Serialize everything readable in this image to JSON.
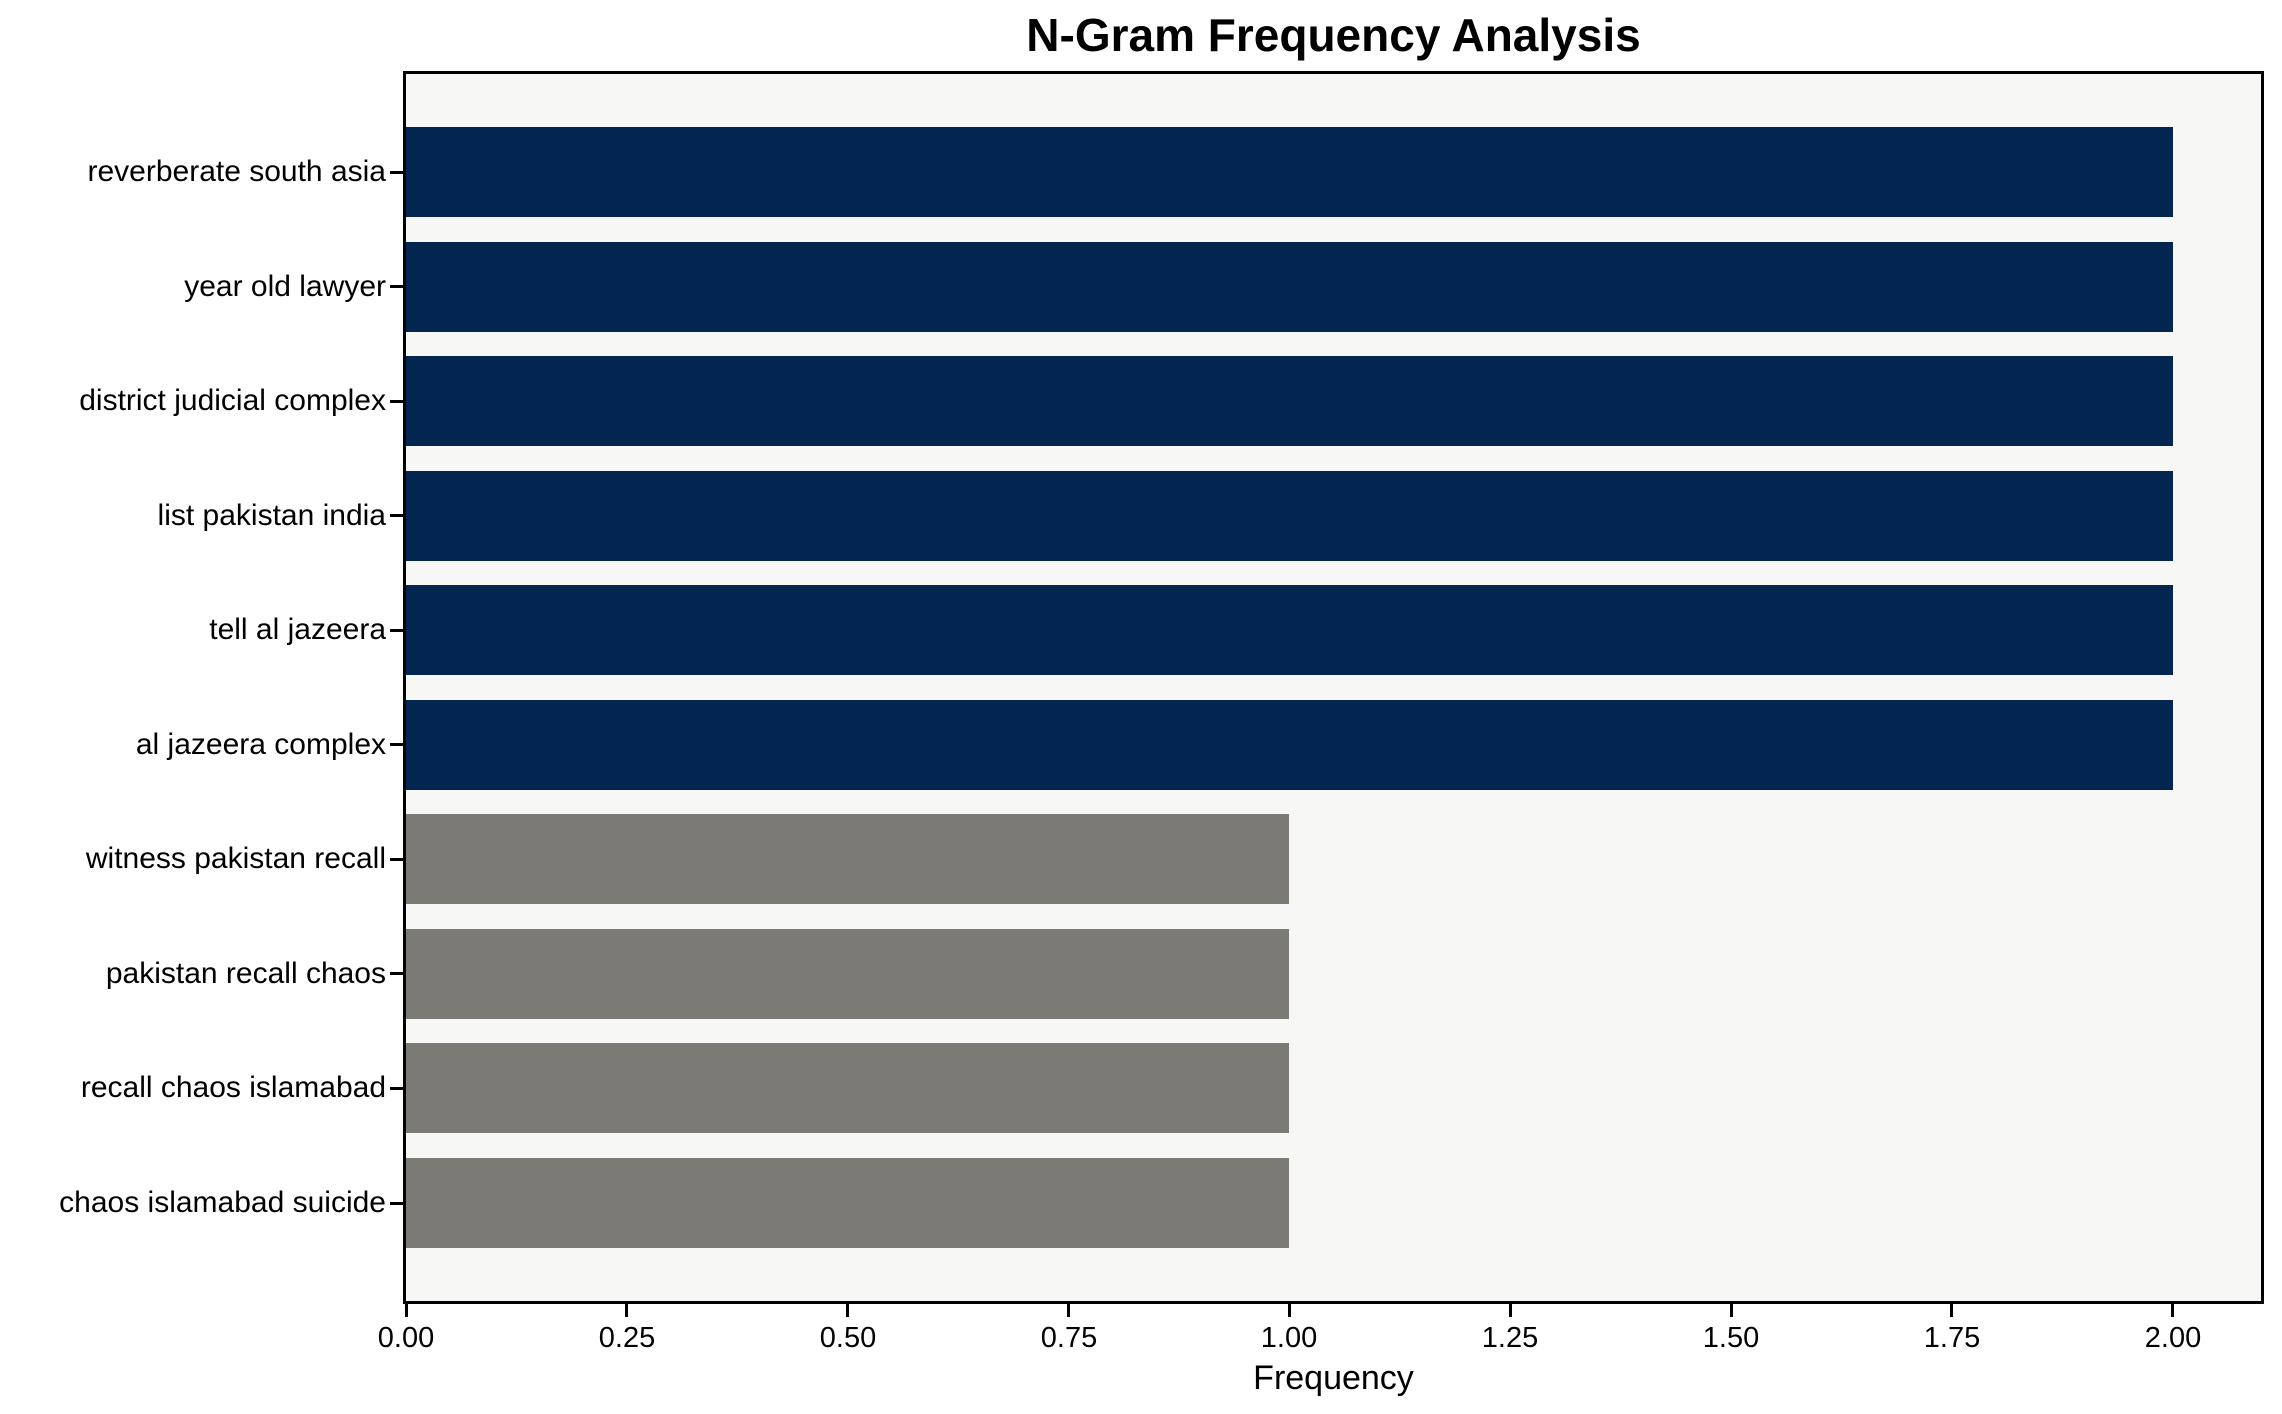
{
  "figure": {
    "title": "N-Gram Frequency Analysis",
    "xlabel": "Frequency"
  },
  "colors": {
    "bar_high_freq": "#02264f",
    "bar_low_freq": "#7b7a75",
    "plot_background": "#f7f7f5",
    "figure_background": "#ffffff",
    "spine": "#000000",
    "text": "#000000"
  },
  "chart_data": {
    "type": "bar",
    "orientation": "horizontal",
    "title": "N-Gram Frequency Analysis",
    "xlabel": "Frequency",
    "ylabel": "",
    "categories": [
      "reverberate south asia",
      "year old lawyer",
      "district judicial complex",
      "list pakistan india",
      "tell al jazeera",
      "al jazeera complex",
      "witness pakistan recall",
      "pakistan recall chaos",
      "recall chaos islamabad",
      "chaos islamabad suicide"
    ],
    "values": [
      2,
      2,
      2,
      2,
      2,
      2,
      1,
      1,
      1,
      1
    ],
    "bar_colors": [
      "#02264f",
      "#02264f",
      "#02264f",
      "#02264f",
      "#02264f",
      "#02264f",
      "#7b7a75",
      "#7b7a75",
      "#7b7a75",
      "#7b7a75"
    ],
    "xlim": [
      0,
      2.1
    ],
    "xticks": [
      0.0,
      0.25,
      0.5,
      0.75,
      1.0,
      1.25,
      1.5,
      1.75,
      2.0
    ],
    "xtick_labels": [
      "0.00",
      "0.25",
      "0.50",
      "0.75",
      "1.00",
      "1.25",
      "1.50",
      "1.75",
      "2.00"
    ],
    "grid": false,
    "legend_position": "none"
  }
}
